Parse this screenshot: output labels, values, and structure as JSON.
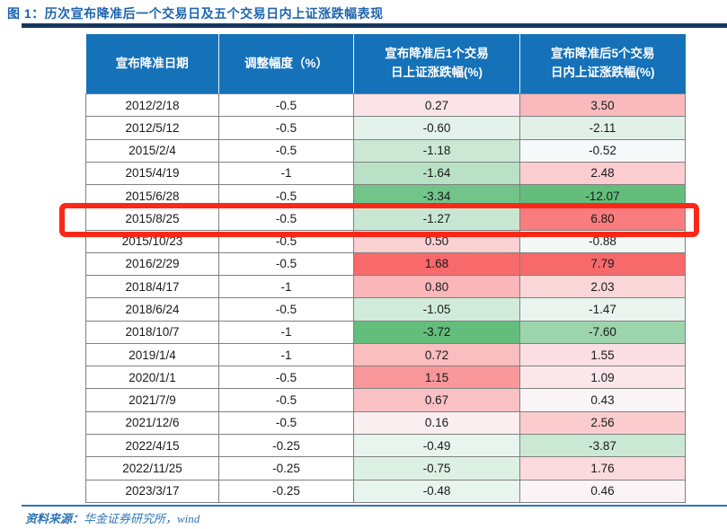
{
  "figure": {
    "title": "图 1：历次宣布降准后一个交易日及五个交易日内上证涨跌幅表现",
    "source_label": "资料来源：",
    "source_text": "华金证券研究所，wind"
  },
  "colors": {
    "title_blue": "#1D64AE",
    "top_rule_navy": "#17375E",
    "header_bg_blue": "#1571B8",
    "header_text": "#FFFFFF",
    "grid_border_gray": "#808080",
    "bottom_rule_blue": "#2E75B6",
    "source_text_blue": "#2E75B6",
    "highlight_box_red": "#FB2817",
    "scale_positive_max_red": "#F8696B",
    "scale_zero_white": "#FCFCFF",
    "scale_negative_min_green": "#63BE7B"
  },
  "table": {
    "columns": [
      "宣布降准日期",
      "调整幅度（%）",
      "宣布降准后1个交易\n日上证涨跌幅(%)",
      "宣布降准后5个交易\n日内上证涨跌幅(%)"
    ],
    "highlighted_date": "2015/8/25",
    "rows": [
      {
        "date": "2012/2/18",
        "adjust": "-0.5",
        "d1": "0.27",
        "d1_bg": "#FBE4E7",
        "d5": "3.50",
        "d5_bg": "#FABABD"
      },
      {
        "date": "2012/5/12",
        "adjust": "-0.5",
        "d1": "-0.60",
        "d1_bg": "#E3F2EA",
        "d5": "-2.11",
        "d5_bg": "#E1F1E8"
      },
      {
        "date": "2015/2/4",
        "adjust": "-0.5",
        "d1": "-1.18",
        "d1_bg": "#CCE8D5",
        "d5": "-0.52",
        "d5_bg": "#F5F9F9"
      },
      {
        "date": "2015/4/19",
        "adjust": "-1",
        "d1": "-1.64",
        "d1_bg": "#B9E1C5",
        "d5": "2.48",
        "d5_bg": "#FBCDD0"
      },
      {
        "date": "2015/6/28",
        "adjust": "-0.5",
        "d1": "-3.34",
        "d1_bg": "#73C489",
        "d5": "-12.07",
        "d5_bg": "#63BE7B"
      },
      {
        "date": "2015/8/25",
        "adjust": "-0.5",
        "d1": "-1.27",
        "d1_bg": "#C8E7D2",
        "d5": "6.80",
        "d5_bg": "#F97C7E"
      },
      {
        "date": "2015/10/23",
        "adjust": "-0.5",
        "d1": "0.50",
        "d1_bg": "#FBD0D3",
        "d5": "-0.88",
        "d5_bg": "#F1F8F5"
      },
      {
        "date": "2016/2/29",
        "adjust": "-0.5",
        "d1": "1.68",
        "d1_bg": "#F8696B",
        "d5": "7.79",
        "d5_bg": "#F8696B"
      },
      {
        "date": "2018/4/17",
        "adjust": "-1",
        "d1": "0.80",
        "d1_bg": "#FAB6B9",
        "d5": "2.03",
        "d5_bg": "#FBD6D8"
      },
      {
        "date": "2018/6/24",
        "adjust": "-0.5",
        "d1": "-1.05",
        "d1_bg": "#D1EBDA",
        "d5": "-1.47",
        "d5_bg": "#E9F4EF"
      },
      {
        "date": "2018/10/7",
        "adjust": "-1",
        "d1": "-3.72",
        "d1_bg": "#63BE7B",
        "d5": "-7.60",
        "d5_bg": "#9CD5AC"
      },
      {
        "date": "2019/1/4",
        "adjust": "-1",
        "d1": "0.72",
        "d1_bg": "#FABDC0",
        "d5": "1.55",
        "d5_bg": "#FBDFE2"
      },
      {
        "date": "2020/1/1",
        "adjust": "-0.5",
        "d1": "1.15",
        "d1_bg": "#F9979A",
        "d5": "1.09",
        "d5_bg": "#FBE7EA"
      },
      {
        "date": "2021/7/9",
        "adjust": "-0.5",
        "d1": "0.67",
        "d1_bg": "#FAC1C4",
        "d5": "0.43",
        "d5_bg": "#FBF4F7"
      },
      {
        "date": "2021/12/6",
        "adjust": "-0.5",
        "d1": "0.16",
        "d1_bg": "#FBEEF1",
        "d5": "2.56",
        "d5_bg": "#FBCCCE"
      },
      {
        "date": "2022/4/15",
        "adjust": "-0.25",
        "d1": "-0.49",
        "d1_bg": "#E8F4EE",
        "d5": "-3.87",
        "d5_bg": "#CBE8D5"
      },
      {
        "date": "2022/11/25",
        "adjust": "-0.25",
        "d1": "-0.75",
        "d1_bg": "#DDF0E4",
        "d5": "1.76",
        "d5_bg": "#FBDBDE"
      },
      {
        "date": "2023/3/17",
        "adjust": "-0.25",
        "d1": "-0.48",
        "d1_bg": "#E8F4EE",
        "d5": "0.46",
        "d5_bg": "#FCF3F6"
      }
    ]
  },
  "chart_data": {
    "type": "table",
    "title": "图 1：历次宣布降准后一个交易日及五个交易日内上证涨跌幅表现",
    "columns": [
      "宣布降准日期",
      "调整幅度（%）",
      "宣布降准后1个交易日上证涨跌幅(%)",
      "宣布降准后5个交易日内上证涨跌幅(%)"
    ],
    "rows": [
      [
        "2012/2/18",
        -0.5,
        0.27,
        3.5
      ],
      [
        "2012/5/12",
        -0.5,
        -0.6,
        -2.11
      ],
      [
        "2015/2/4",
        -0.5,
        -1.18,
        -0.52
      ],
      [
        "2015/4/19",
        -1,
        -1.64,
        2.48
      ],
      [
        "2015/6/28",
        -0.5,
        -3.34,
        -12.07
      ],
      [
        "2015/8/25",
        -0.5,
        -1.27,
        6.8
      ],
      [
        "2015/10/23",
        -0.5,
        0.5,
        -0.88
      ],
      [
        "2016/2/29",
        -0.5,
        1.68,
        7.79
      ],
      [
        "2018/4/17",
        -1,
        0.8,
        2.03
      ],
      [
        "2018/6/24",
        -0.5,
        -1.05,
        -1.47
      ],
      [
        "2018/10/7",
        -1,
        -3.72,
        -7.6
      ],
      [
        "2019/1/4",
        -1,
        0.72,
        1.55
      ],
      [
        "2020/1/1",
        -0.5,
        1.15,
        1.09
      ],
      [
        "2021/7/9",
        -0.5,
        0.67,
        0.43
      ],
      [
        "2021/12/6",
        -0.5,
        0.16,
        2.56
      ],
      [
        "2022/4/15",
        -0.25,
        -0.49,
        -3.87
      ],
      [
        "2022/11/25",
        -0.25,
        -0.75,
        1.76
      ],
      [
        "2023/3/17",
        -0.25,
        -0.48,
        0.46
      ]
    ],
    "conditional_format": {
      "style": "diverging red-white-green, red = positive (up), green = negative (down), scaled per column",
      "positive_max_color": "#F8696B",
      "zero_color": "#FCFCFF",
      "negative_min_color": "#63BE7B",
      "col_1d_range": [
        -3.72,
        1.68
      ],
      "col_5d_range": [
        -12.07,
        7.79
      ]
    },
    "highlighted_row": "2015/8/25",
    "source": "资料来源：华金证券研究所，wind"
  }
}
